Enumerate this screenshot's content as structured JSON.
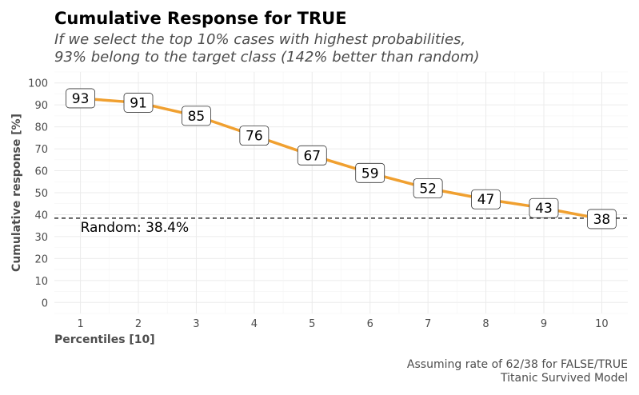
{
  "chart_data": {
    "type": "line",
    "title": "Cumulative Response for TRUE",
    "subtitle": [
      "If we select the top 10% cases with highest probabilities,",
      "93% belong to the target class (142% better than random)"
    ],
    "xlabel": "Percentiles [10]",
    "ylabel": "Cumulative response [%]",
    "x": [
      1,
      2,
      3,
      4,
      5,
      6,
      7,
      8,
      9,
      10
    ],
    "values": [
      93,
      91,
      85,
      76,
      67,
      59,
      52,
      47,
      43,
      38
    ],
    "data_labels": [
      "93",
      "91",
      "85",
      "76",
      "67",
      "59",
      "52",
      "47",
      "43",
      "38"
    ],
    "xlim": [
      0.55,
      10.45
    ],
    "ylim": [
      -5,
      105
    ],
    "yticks": [
      0,
      10,
      20,
      30,
      40,
      50,
      60,
      70,
      80,
      90,
      100
    ],
    "xticks": [
      1,
      2,
      3,
      4,
      5,
      6,
      7,
      8,
      9,
      10
    ],
    "reference_line": {
      "value": 38.4,
      "label": "Random: 38.4%",
      "style": "dashed"
    },
    "caption": [
      "Assuming rate of 62/38 for FALSE/TRUE",
      "Titanic Survived Model"
    ],
    "grid": true,
    "colors": {
      "line": "#F0A030",
      "reference": "#000000"
    }
  }
}
